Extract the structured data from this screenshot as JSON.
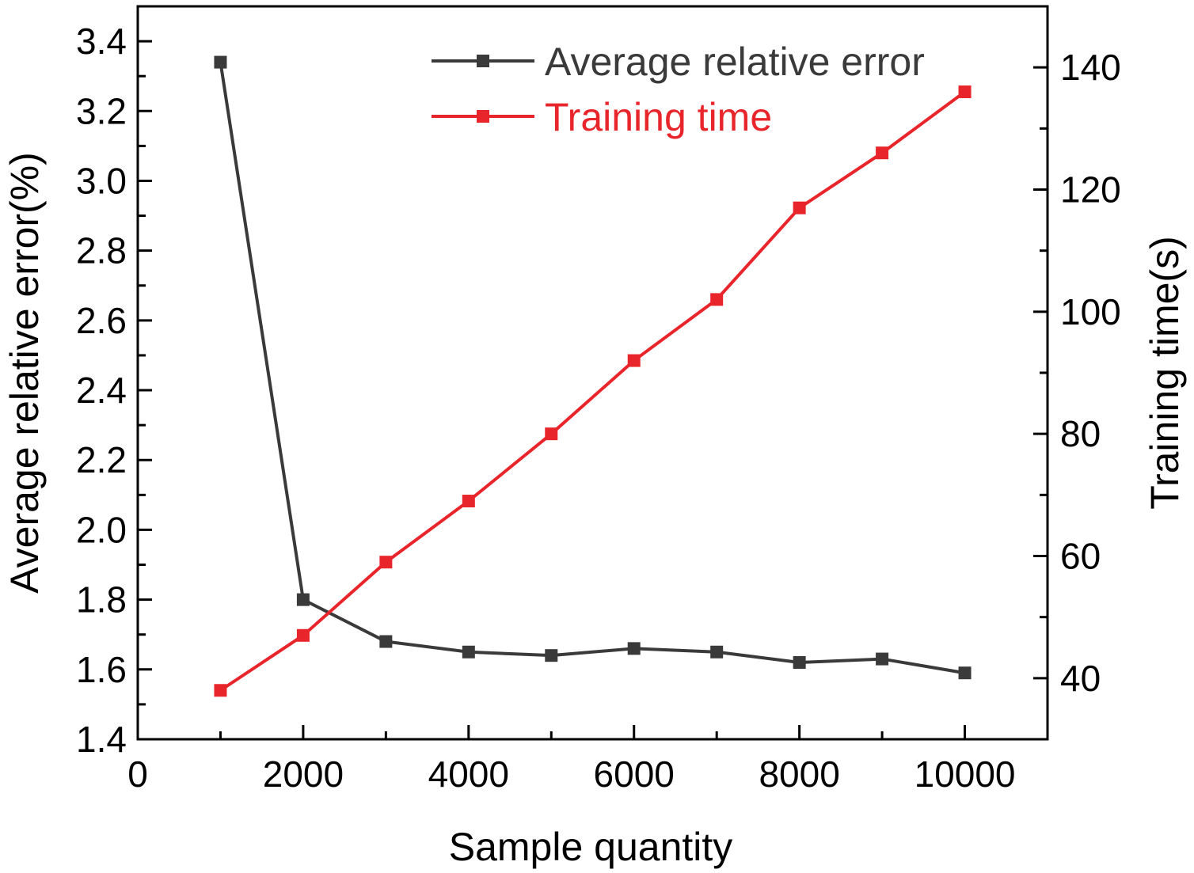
{
  "chart_data": {
    "type": "line",
    "xlabel": "Sample quantity",
    "ylabel_left": "Average relative error(%)",
    "ylabel_right": "Training time(s)",
    "xlim": [
      0,
      11000
    ],
    "ylim_left": [
      1.4,
      3.5
    ],
    "ylim_right": [
      30,
      150
    ],
    "x_ticks": [
      0,
      2000,
      4000,
      6000,
      8000,
      10000
    ],
    "y_left_ticks": [
      "1.4",
      "1.6",
      "1.8",
      "2.0",
      "2.2",
      "2.4",
      "2.6",
      "2.8",
      "3.0",
      "3.2",
      "3.4"
    ],
    "y_right_ticks": [
      40,
      60,
      80,
      100,
      120,
      140
    ],
    "grid": false,
    "legend_position": "top-right",
    "x": [
      1000,
      2000,
      3000,
      4000,
      5000,
      6000,
      7000,
      8000,
      9000,
      10000
    ],
    "series": [
      {
        "name": "Average relative error",
        "axis": "left",
        "color": "#3a3a3a",
        "values": [
          3.34,
          1.8,
          1.68,
          1.65,
          1.64,
          1.66,
          1.65,
          1.62,
          1.63,
          1.59
        ]
      },
      {
        "name": "Training time",
        "axis": "right",
        "color": "#e8252b",
        "values": [
          38,
          47,
          59,
          69,
          80,
          92,
          102,
          117,
          126,
          136
        ]
      }
    ]
  }
}
